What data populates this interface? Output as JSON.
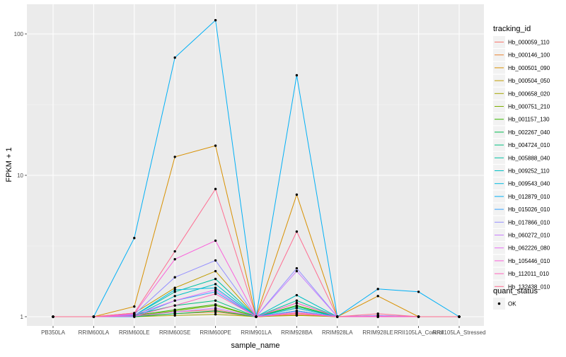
{
  "chart_data": {
    "type": "line",
    "xlabel": "sample_name",
    "ylabel": "FPKM + 1",
    "y_scale": "log10",
    "ylim": [
      0.95,
      140
    ],
    "y_ticks": [
      {
        "value": 1,
        "label": "1"
      },
      {
        "value": 10,
        "label": "10"
      },
      {
        "value": 100,
        "label": "100"
      }
    ],
    "grid": true,
    "panel_background": "#ebebeb",
    "legend_placement": "right",
    "categories": [
      "PB350LA",
      "RRIM600LA",
      "RRIM600LE",
      "RRIM600SE",
      "RRIM600PE",
      "RRIM901LA",
      "RRIM928BA",
      "RRIM928LA",
      "RRIM928LE",
      "RRII105LA_Control",
      "RRII105LA_Stressed"
    ],
    "legend_title": "tracking_id",
    "series": [
      {
        "name": "Hb_000059_110",
        "color": "#F8766D",
        "values": [
          1,
          1,
          1.02,
          1.08,
          1.12,
          1,
          1.06,
          1,
          1,
          1,
          1
        ]
      },
      {
        "name": "Hb_000146_100",
        "color": "#EA8331",
        "values": [
          1,
          1,
          1.01,
          1.05,
          1.08,
          1,
          1.03,
          1,
          1,
          1,
          1
        ]
      },
      {
        "name": "Hb_000501_090",
        "color": "#D89000",
        "values": [
          1,
          1,
          1.18,
          13.5,
          16.2,
          1,
          7.3,
          1,
          1.4,
          1,
          1
        ]
      },
      {
        "name": "Hb_000504_050",
        "color": "#C09B00",
        "values": [
          1,
          1,
          1.06,
          1.6,
          2.1,
          1,
          1.25,
          1,
          1.02,
          1,
          1
        ]
      },
      {
        "name": "Hb_000658_020",
        "color": "#A3A500",
        "values": [
          1,
          1,
          1.0,
          1.02,
          1.04,
          1,
          1.02,
          1,
          1,
          1,
          1
        ]
      },
      {
        "name": "Hb_000751_210",
        "color": "#7CAE00",
        "values": [
          1,
          1,
          1.01,
          1.1,
          1.2,
          1,
          1.15,
          1,
          1,
          1,
          1
        ]
      },
      {
        "name": "Hb_001157_130",
        "color": "#39B600",
        "values": [
          1,
          1,
          1.02,
          1.12,
          1.22,
          1,
          1.2,
          1,
          1.01,
          1,
          1
        ]
      },
      {
        "name": "Hb_002267_040",
        "color": "#00BB4E",
        "values": [
          1,
          1,
          1.0,
          1.05,
          1.1,
          1,
          1.1,
          1,
          1,
          1,
          1
        ]
      },
      {
        "name": "Hb_004724_010",
        "color": "#00BF7D",
        "values": [
          1,
          1,
          1.03,
          1.2,
          1.3,
          1,
          1.18,
          1,
          1,
          1,
          1
        ]
      },
      {
        "name": "Hb_005888_040",
        "color": "#00C1A3",
        "values": [
          1,
          1,
          1.02,
          1.5,
          1.85,
          1,
          1.3,
          1,
          1.01,
          1,
          1
        ]
      },
      {
        "name": "Hb_009252_110",
        "color": "#00BFC4",
        "values": [
          1,
          1,
          1.01,
          1.4,
          1.7,
          1,
          1.42,
          1,
          1.0,
          1,
          1
        ]
      },
      {
        "name": "Hb_009543_040",
        "color": "#00BAE0",
        "values": [
          1,
          1,
          1.02,
          1.55,
          1.6,
          1,
          1.15,
          1,
          1.0,
          1,
          1
        ]
      },
      {
        "name": "Hb_012879_010",
        "color": "#00B0F6",
        "values": [
          1,
          1,
          3.6,
          68,
          125,
          1,
          51,
          1,
          1.57,
          1.5,
          1
        ]
      },
      {
        "name": "Hb_015026_010",
        "color": "#35A2FF",
        "values": [
          1,
          1,
          1.0,
          1.3,
          1.5,
          1,
          1.1,
          1,
          1,
          1,
          1
        ]
      },
      {
        "name": "Hb_017866_010",
        "color": "#9590FF",
        "values": [
          1,
          1,
          1.04,
          1.9,
          2.5,
          1,
          2.2,
          1,
          1.02,
          1,
          1
        ]
      },
      {
        "name": "Hb_060272_010",
        "color": "#C77CFF",
        "values": [
          1,
          1,
          1.01,
          1.08,
          1.15,
          1,
          2.1,
          1,
          1.0,
          1,
          1
        ]
      },
      {
        "name": "Hb_062226_080",
        "color": "#E76BF3",
        "values": [
          1,
          1,
          1.03,
          1.3,
          1.55,
          1,
          1.08,
          1,
          1,
          1,
          1
        ]
      },
      {
        "name": "Hb_105446_010",
        "color": "#FA62DB",
        "values": [
          1,
          1,
          1.05,
          2.55,
          3.45,
          1,
          1.25,
          1,
          1.01,
          1,
          1
        ]
      },
      {
        "name": "Hb_112011_010",
        "color": "#FF62BC",
        "values": [
          1,
          1,
          1.01,
          1.2,
          1.45,
          1,
          1.05,
          1,
          1,
          1,
          1
        ]
      },
      {
        "name": "Hb_132438_010",
        "color": "#FF6C91",
        "values": [
          1,
          1,
          1.06,
          2.9,
          8.0,
          1,
          4.0,
          1,
          1.05,
          1,
          1
        ]
      }
    ],
    "shape_legend": {
      "title": "quant_status",
      "items": [
        {
          "name": "OK",
          "shape": "circle"
        }
      ]
    }
  }
}
